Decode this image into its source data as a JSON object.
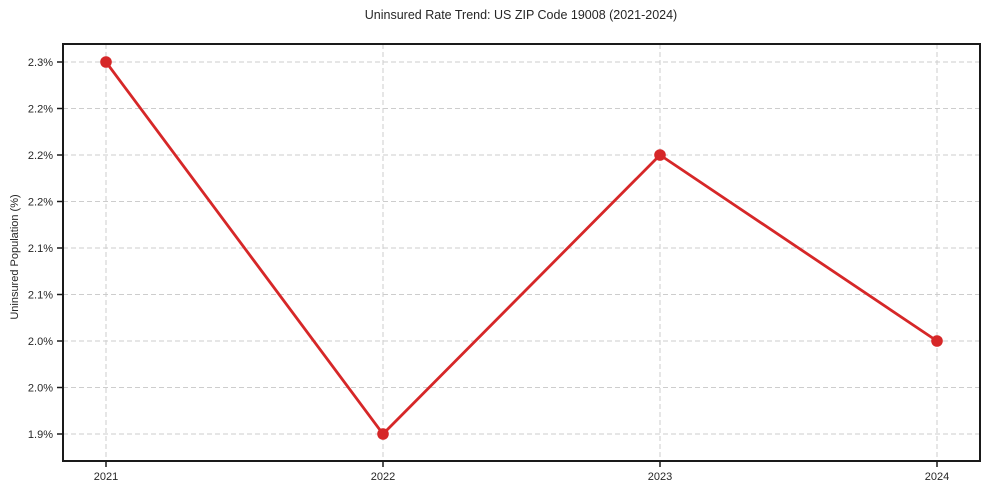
{
  "chart_data": {
    "type": "line",
    "title": "Uninsured Rate Trend: US ZIP Code 19008 (2021-2024)",
    "xlabel": "",
    "ylabel": "Uninsured Population (%)",
    "categories": [
      "2021",
      "2022",
      "2023",
      "2024"
    ],
    "values": [
      2.3,
      1.9,
      2.2,
      2.0
    ],
    "value_unit": "%",
    "yticks": {
      "values": [
        2.3,
        2.25,
        2.2,
        2.15,
        2.1,
        2.05,
        2.0,
        1.95,
        1.9
      ],
      "labels": [
        "2.3%",
        "2.2%",
        "2.2%",
        "2.2%",
        "2.1%",
        "2.1%",
        "2.0%",
        "2.0%",
        "1.9%"
      ]
    },
    "ylim": [
      1.87,
      2.32
    ],
    "grid": true,
    "grid_style": "dashed",
    "legend": "none",
    "marker": "circle",
    "colors": {
      "line": "#d62728",
      "marker": "#d62728",
      "grid": "#cdcdcd",
      "spine": "#1a1a1a",
      "tick": "#1a1a1a",
      "text": "#262626",
      "background": "#ffffff"
    }
  }
}
